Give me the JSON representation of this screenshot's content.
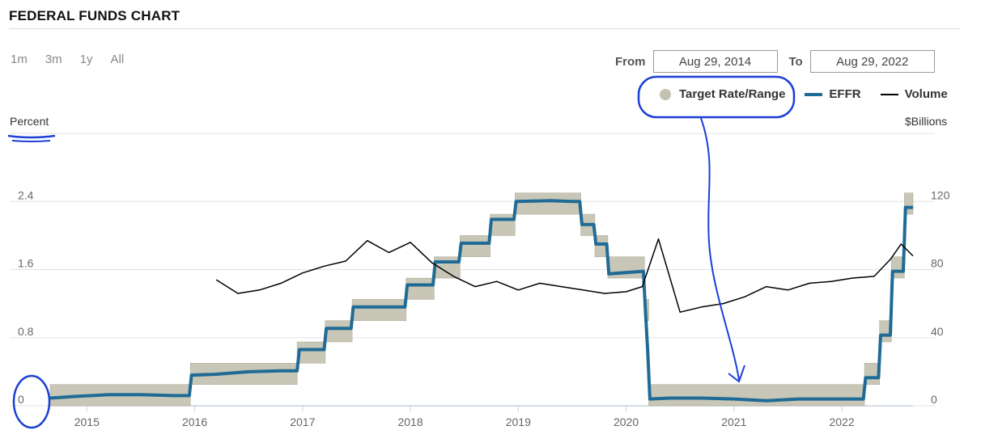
{
  "header": {
    "title": "FEDERAL FUNDS CHART"
  },
  "range_buttons": [
    {
      "label": "1m"
    },
    {
      "label": "3m"
    },
    {
      "label": "1y"
    },
    {
      "label": "All"
    }
  ],
  "date_range": {
    "from_label": "From",
    "from_value": "Aug 29, 2014",
    "to_label": "To",
    "to_value": "Aug 29, 2022"
  },
  "legend": {
    "target": "Target Rate/Range",
    "effr": "EFFR",
    "volume": "Volume"
  },
  "colors": {
    "target_band": "#c8c6b6",
    "effr": "#1f6b96",
    "volume": "#000000",
    "annotation": "#1d3fd6"
  },
  "chart_data": {
    "type": "line",
    "ylabel_left": "Percent",
    "ylabel_right": "$Billions",
    "left_axis": {
      "min": 0,
      "max": 3.2,
      "ticks": [
        0,
        0.8,
        1.6,
        2.4
      ],
      "tick_labels": [
        "0",
        "0.8",
        "1.6",
        "2.4"
      ]
    },
    "right_axis": {
      "min": 0,
      "max": 160,
      "ticks": [
        0,
        40,
        80,
        120
      ],
      "tick_labels": [
        "0",
        "40",
        "80",
        "120"
      ]
    },
    "x_axis": {
      "min": 2014.66,
      "max": 2022.66,
      "ticks": [
        2015,
        2016,
        2017,
        2018,
        2019,
        2020,
        2021,
        2022
      ],
      "tick_labels": [
        "2015",
        "2016",
        "2017",
        "2018",
        "2019",
        "2020",
        "2021",
        "2022"
      ]
    },
    "target_range": [
      {
        "start": 2014.66,
        "end": 2015.96,
        "low": 0.0,
        "high": 0.25
      },
      {
        "start": 2015.96,
        "end": 2016.95,
        "low": 0.25,
        "high": 0.5
      },
      {
        "start": 2016.95,
        "end": 2017.21,
        "low": 0.5,
        "high": 0.75
      },
      {
        "start": 2017.21,
        "end": 2017.46,
        "low": 0.75,
        "high": 1.0
      },
      {
        "start": 2017.46,
        "end": 2017.96,
        "low": 1.0,
        "high": 1.25
      },
      {
        "start": 2017.96,
        "end": 2018.22,
        "low": 1.25,
        "high": 1.5
      },
      {
        "start": 2018.22,
        "end": 2018.46,
        "low": 1.5,
        "high": 1.75
      },
      {
        "start": 2018.46,
        "end": 2018.74,
        "low": 1.75,
        "high": 2.0
      },
      {
        "start": 2018.74,
        "end": 2018.97,
        "low": 2.0,
        "high": 2.25
      },
      {
        "start": 2018.97,
        "end": 2019.58,
        "low": 2.25,
        "high": 2.5
      },
      {
        "start": 2019.58,
        "end": 2019.71,
        "low": 2.0,
        "high": 2.25
      },
      {
        "start": 2019.71,
        "end": 2019.83,
        "low": 1.75,
        "high": 2.0
      },
      {
        "start": 2019.83,
        "end": 2020.17,
        "low": 1.5,
        "high": 1.75
      },
      {
        "start": 2020.17,
        "end": 2020.21,
        "low": 1.0,
        "high": 1.25
      },
      {
        "start": 2020.21,
        "end": 2022.21,
        "low": 0.0,
        "high": 0.25
      },
      {
        "start": 2022.21,
        "end": 2022.35,
        "low": 0.25,
        "high": 0.5
      },
      {
        "start": 2022.35,
        "end": 2022.46,
        "low": 0.75,
        "high": 1.0
      },
      {
        "start": 2022.46,
        "end": 2022.58,
        "low": 1.5,
        "high": 1.75
      },
      {
        "start": 2022.58,
        "end": 2022.66,
        "low": 2.25,
        "high": 2.5
      }
    ],
    "series": [
      {
        "name": "EFFR",
        "axis": "left",
        "x": [
          2014.66,
          2014.9,
          2015.2,
          2015.5,
          2015.8,
          2015.95,
          2015.97,
          2016.2,
          2016.5,
          2016.8,
          2016.95,
          2016.97,
          2017.2,
          2017.22,
          2017.45,
          2017.47,
          2017.95,
          2017.97,
          2018.21,
          2018.23,
          2018.45,
          2018.47,
          2018.73,
          2018.75,
          2018.96,
          2018.98,
          2019.3,
          2019.5,
          2019.57,
          2019.59,
          2019.7,
          2019.72,
          2019.82,
          2019.84,
          2020.16,
          2020.18,
          2020.2,
          2020.22,
          2020.4,
          2020.7,
          2021.0,
          2021.3,
          2021.6,
          2021.9,
          2022.2,
          2022.22,
          2022.34,
          2022.36,
          2022.45,
          2022.47,
          2022.57,
          2022.59,
          2022.66
        ],
        "y": [
          0.09,
          0.11,
          0.13,
          0.13,
          0.12,
          0.12,
          0.36,
          0.37,
          0.4,
          0.41,
          0.41,
          0.66,
          0.66,
          0.91,
          0.91,
          1.16,
          1.16,
          1.42,
          1.42,
          1.69,
          1.69,
          1.91,
          1.91,
          2.19,
          2.19,
          2.4,
          2.41,
          2.4,
          2.4,
          2.13,
          2.13,
          1.9,
          1.9,
          1.55,
          1.58,
          1.1,
          0.65,
          0.08,
          0.09,
          0.09,
          0.08,
          0.06,
          0.08,
          0.08,
          0.08,
          0.33,
          0.33,
          0.83,
          0.83,
          1.58,
          1.58,
          2.33,
          2.33
        ]
      },
      {
        "name": "Volume",
        "axis": "right",
        "x": [
          2016.2,
          2016.4,
          2016.6,
          2016.8,
          2017.0,
          2017.2,
          2017.4,
          2017.6,
          2017.8,
          2018.0,
          2018.2,
          2018.4,
          2018.6,
          2018.8,
          2019.0,
          2019.2,
          2019.4,
          2019.6,
          2019.8,
          2020.0,
          2020.15,
          2020.3,
          2020.5,
          2020.7,
          2020.9,
          2021.1,
          2021.3,
          2021.5,
          2021.7,
          2021.9,
          2022.1,
          2022.3,
          2022.45,
          2022.55,
          2022.66
        ],
        "y": [
          74,
          66,
          68,
          72,
          78,
          82,
          85,
          97,
          90,
          96,
          84,
          76,
          70,
          73,
          68,
          72,
          70,
          68,
          66,
          67,
          70,
          98,
          55,
          58,
          60,
          64,
          70,
          68,
          72,
          73,
          75,
          76,
          86,
          95,
          88
        ]
      }
    ]
  }
}
